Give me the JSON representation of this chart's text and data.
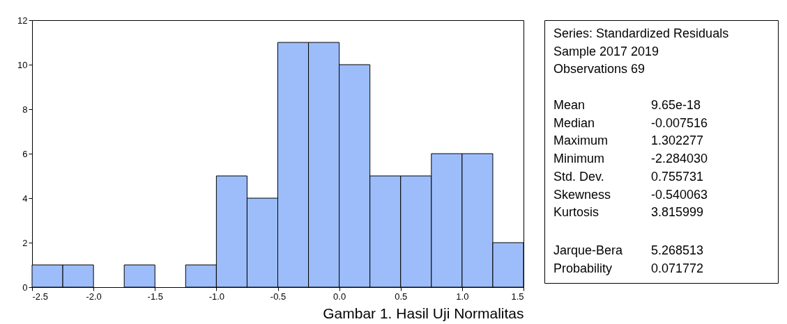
{
  "chart_data": [
    {
      "type": "histogram",
      "bins": [
        -2.5,
        -2.25,
        -2.0,
        -1.75,
        -1.5,
        -1.25,
        -1.0,
        -0.75,
        -0.5,
        -0.25,
        0.0,
        0.25,
        0.5,
        0.75,
        1.0,
        1.25,
        1.5
      ],
      "values": [
        1,
        1,
        0,
        1,
        0,
        1,
        5,
        4,
        11,
        11,
        10,
        5,
        5,
        6,
        6,
        2
      ],
      "color": "#9dbdfa",
      "xlim": [
        -2.5,
        1.5
      ],
      "xticks": [
        {
          "value": -2.5,
          "label": "-2.5"
        },
        {
          "value": -2,
          "label": "-2.0"
        },
        {
          "value": -1.5,
          "label": "-1.5"
        },
        {
          "value": -1,
          "label": "-1.0"
        },
        {
          "value": -0.5,
          "label": "-0.5"
        },
        {
          "value": 0,
          "label": "0.0"
        },
        {
          "value": 0.5,
          "label": "0.5"
        },
        {
          "value": 1,
          "label": "1.0"
        },
        {
          "value": 1.5,
          "label": "1.5"
        }
      ],
      "ylim": [
        0,
        12
      ],
      "yticks": [
        0,
        2,
        4,
        6,
        8,
        10,
        12
      ],
      "grid": false,
      "annotations": [
        "Gambar 1. Hasil Uji Normalitas"
      ]
    },
    {
      "type": "other",
      "annotations": [
        "Series: Standardized Residuals",
        "Sample 2017 2019",
        "Observations 69",
        "Mean",
        "9.65e-18",
        "Median",
        "-0.007516",
        "Maximum",
        "1.302277",
        "Minimum",
        "-2.284030",
        "Std. Dev.",
        "0.755731",
        "Skewness",
        "-0.540063",
        "Kurtosis",
        "3.815999",
        "Jarque-Bera",
        "5.268513",
        "Probability",
        "0.071772"
      ]
    }
  ]
}
